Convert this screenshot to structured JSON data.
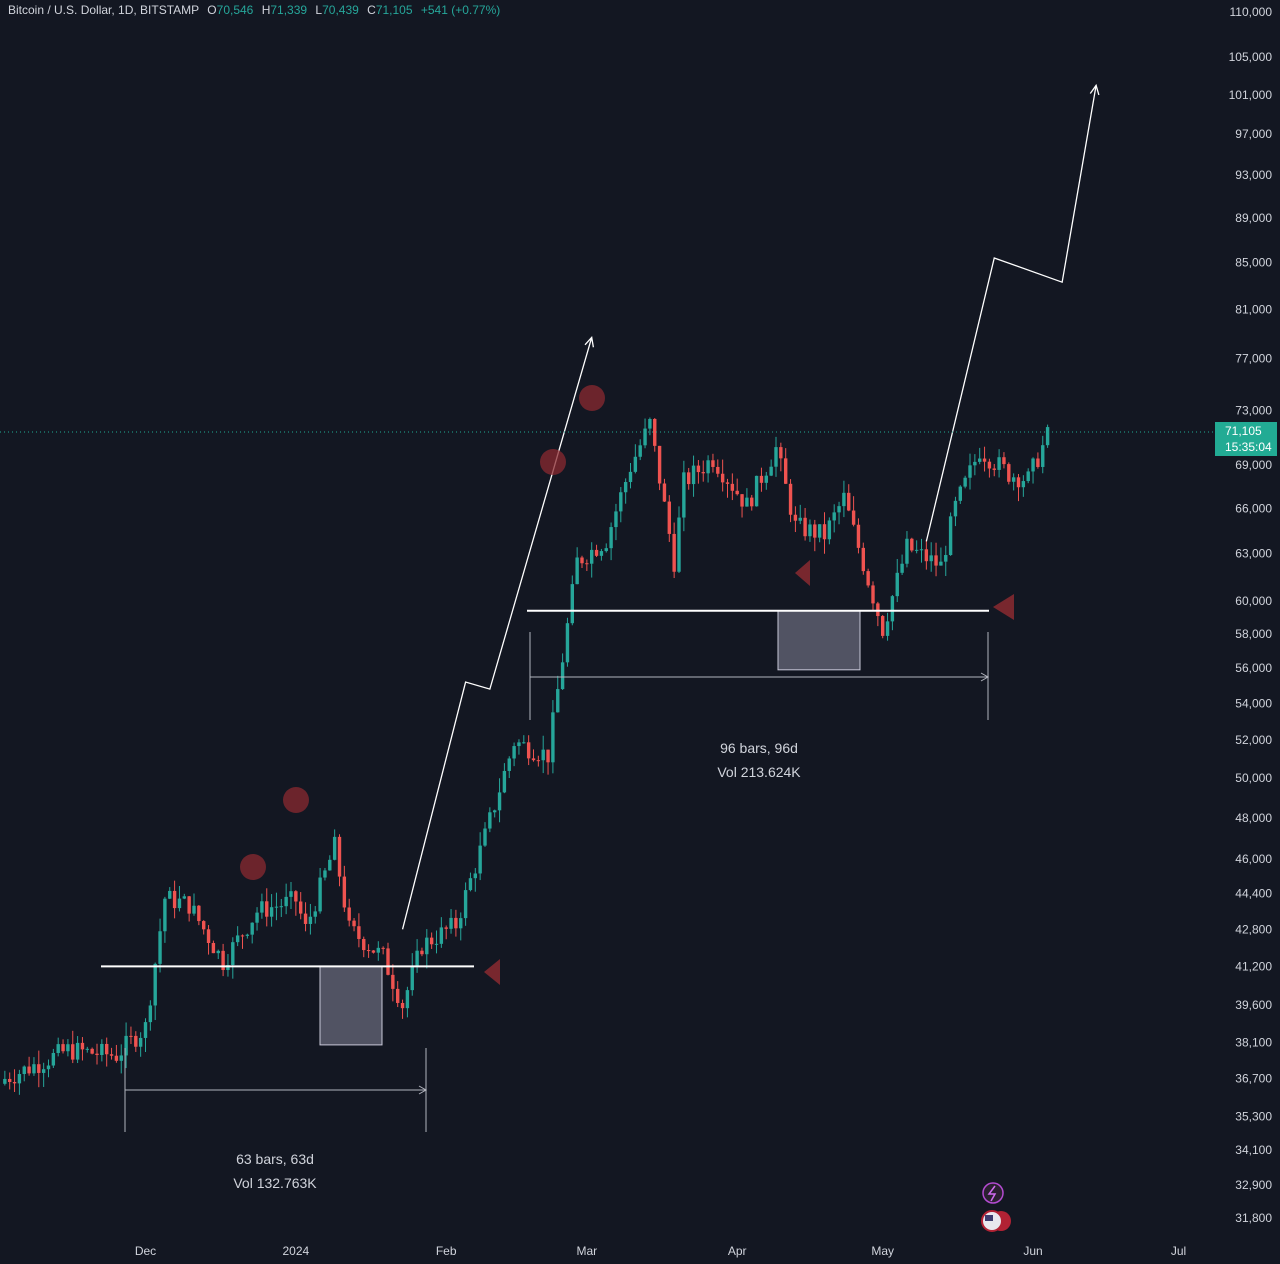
{
  "symbol": {
    "title": "Bitcoin / U.S. Dollar, 1D, BITSTAMP",
    "o_label": "O",
    "o_value": "70,546",
    "h_label": "H",
    "h_value": "71,339",
    "l_label": "L",
    "l_value": "70,439",
    "c_label": "C",
    "c_value": "71,105",
    "change": "+541 (+0.77%)"
  },
  "last_price": {
    "price": "71,105",
    "countdown": "15:35:04"
  },
  "colors": {
    "background": "#131722",
    "up": "#26a69a",
    "down": "#ef5350",
    "price_tag": "#22ab94",
    "axis_text": "#d1d4dc",
    "annotation": "#ffffff",
    "range_box": "#9e9eb3",
    "marker": "#8b2a30"
  },
  "chart_data": {
    "type": "candlestick",
    "title": "Bitcoin / U.S. Dollar, 1D, BITSTAMP",
    "xlabel": "",
    "ylabel": "",
    "scale": "log",
    "grid": false,
    "ylim": [
      31000,
      110000
    ],
    "y_ticks": [
      "110,000",
      "105,000",
      "101,000",
      "97,000",
      "93,000",
      "89,000",
      "85,000",
      "81,000",
      "77,000",
      "73,000",
      "69,000",
      "66,000",
      "63,000",
      "60,000",
      "58,000",
      "56,000",
      "54,000",
      "52,000",
      "50,000",
      "48,000",
      "46,000",
      "44,400",
      "42,800",
      "41,200",
      "39,600",
      "38,100",
      "36,700",
      "35,300",
      "34,100",
      "32,900",
      "31,800"
    ],
    "x_ticks": [
      {
        "label": "Dec",
        "date": "2023-12-01"
      },
      {
        "label": "2024",
        "date": "2024-01-01"
      },
      {
        "label": "Feb",
        "date": "2024-02-01"
      },
      {
        "label": "Mar",
        "date": "2024-03-01"
      },
      {
        "label": "Apr",
        "date": "2024-04-01"
      },
      {
        "label": "May",
        "date": "2024-05-01"
      },
      {
        "label": "Jun",
        "date": "2024-06-01"
      },
      {
        "label": "Jul",
        "date": "2024-07-01"
      }
    ],
    "anchors": [
      {
        "date": "2023-11-02",
        "close": 36700
      },
      {
        "date": "2023-11-15",
        "close": 37800
      },
      {
        "date": "2023-11-25",
        "close": 37600
      },
      {
        "date": "2023-12-01",
        "close": 38700
      },
      {
        "date": "2023-12-05",
        "close": 44200
      },
      {
        "date": "2023-12-10",
        "close": 43900
      },
      {
        "date": "2023-12-17",
        "close": 41400
      },
      {
        "date": "2023-12-24",
        "close": 43600
      },
      {
        "date": "2024-01-01",
        "close": 44100
      },
      {
        "date": "2024-01-03",
        "close": 42800
      },
      {
        "date": "2024-01-09",
        "close": 46600
      },
      {
        "date": "2024-01-12",
        "close": 42800
      },
      {
        "date": "2024-01-19",
        "close": 41600
      },
      {
        "date": "2024-01-23",
        "close": 39600
      },
      {
        "date": "2024-01-27",
        "close": 42100
      },
      {
        "date": "2024-02-03",
        "close": 43000
      },
      {
        "date": "2024-02-09",
        "close": 47100
      },
      {
        "date": "2024-02-15",
        "close": 51900
      },
      {
        "date": "2024-02-22",
        "close": 51200
      },
      {
        "date": "2024-02-28",
        "close": 62500
      },
      {
        "date": "2024-03-05",
        "close": 63900
      },
      {
        "date": "2024-03-10",
        "close": 68900
      },
      {
        "date": "2024-03-14",
        "close": 72000
      },
      {
        "date": "2024-03-19",
        "close": 62500
      },
      {
        "date": "2024-03-21",
        "close": 67800
      },
      {
        "date": "2024-03-27",
        "close": 69500
      },
      {
        "date": "2024-04-03",
        "close": 66200
      },
      {
        "date": "2024-04-09",
        "close": 70200
      },
      {
        "date": "2024-04-13",
        "close": 64800
      },
      {
        "date": "2024-04-19",
        "close": 64200
      },
      {
        "date": "2024-04-23",
        "close": 66700
      },
      {
        "date": "2024-05-01",
        "close": 58300
      },
      {
        "date": "2024-05-06",
        "close": 63400
      },
      {
        "date": "2024-05-13",
        "close": 62200
      },
      {
        "date": "2024-05-16",
        "close": 66100
      },
      {
        "date": "2024-05-21",
        "close": 70100
      },
      {
        "date": "2024-05-27",
        "close": 68400
      },
      {
        "date": "2024-05-31",
        "close": 68000
      },
      {
        "date": "2024-06-04",
        "close": 71105
      }
    ],
    "support_levels": [
      41200,
      59400
    ],
    "annotations": [
      {
        "type": "date_range",
        "bars_label": "63 bars, 63d",
        "vol_label": "Vol 132.763K",
        "start": "2023-12-05",
        "end": "2024-02-06"
      },
      {
        "type": "date_range",
        "bars_label": "96 bars, 96d",
        "vol_label": "Vol 213.624K",
        "start": "2024-02-28",
        "end": "2024-06-03"
      },
      {
        "type": "projection_path",
        "points": [
          {
            "date": "2024-01-23",
            "price": 42800
          },
          {
            "date": "2024-02-05",
            "price": 55200
          },
          {
            "date": "2024-02-10",
            "price": 54800
          },
          {
            "date": "2024-03-02",
            "price": 78700
          }
        ]
      },
      {
        "type": "projection_path",
        "points": [
          {
            "date": "2024-05-10",
            "price": 63800
          },
          {
            "date": "2024-05-24",
            "price": 85400
          },
          {
            "date": "2024-06-07",
            "price": 83300
          },
          {
            "date": "2024-06-14",
            "price": 102000
          }
        ]
      }
    ]
  }
}
